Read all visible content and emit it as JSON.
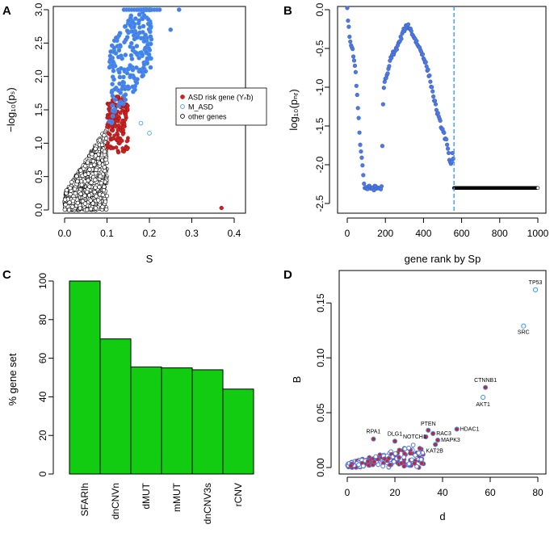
{
  "chart_data": [
    {
      "panel": "A",
      "type": "scatter",
      "xlabel": "S",
      "ylabel": "−log₁₀(pₛ)",
      "xlim": [
        0,
        0.4
      ],
      "ylim": [
        0,
        3.0
      ],
      "x_ticks": [
        "0.0",
        "0.1",
        "0.2",
        "0.3",
        "0.4"
      ],
      "y_ticks": [
        "0.0",
        "0.5",
        "1.0",
        "1.5",
        "2.0",
        "2.5",
        "3.0"
      ],
      "legend": {
        "position": "right",
        "entries": [
          {
            "label": "ASD risk gene (Yₙᵬ)",
            "color": "#cc2222",
            "marker": "filled"
          },
          {
            "label": "M_ASD",
            "color": "#3399ff",
            "marker": "open"
          },
          {
            "label": "other genes",
            "color": "#000000",
            "marker": "open"
          }
        ]
      },
      "series": [
        {
          "name": "other genes",
          "color": "#000000",
          "x_range": [
            0,
            0.1
          ],
          "y_range": [
            0,
            1.25
          ]
        },
        {
          "name": "ASD risk gene",
          "color": "#cc2222",
          "x_range": [
            0.1,
            0.16
          ],
          "y_range": [
            0.8,
            1.7
          ]
        },
        {
          "name": "M_ASD",
          "color": "#3399ff",
          "x_range": [
            0.1,
            0.27
          ],
          "y_range": [
            1.2,
            3.0
          ]
        }
      ],
      "outlier": {
        "x": 0.37,
        "y": 0.03
      }
    },
    {
      "panel": "B",
      "type": "scatter",
      "xlabel": "gene rank by Sp",
      "ylabel": "log₁₀(pₙᵣ)",
      "xlim": [
        0,
        1000
      ],
      "ylim": [
        -2.5,
        0.0
      ],
      "x_ticks": [
        "0",
        "200",
        "400",
        "600",
        "800",
        "1000"
      ],
      "y_ticks": [
        "0.0",
        "-0.5",
        "-1.0",
        "-1.5",
        "-2.0",
        "-2.5"
      ],
      "vline": 560,
      "profile": [
        [
          0,
          0
        ],
        [
          5,
          -0.15
        ],
        [
          15,
          -0.4
        ],
        [
          30,
          -0.55
        ],
        [
          45,
          -0.85
        ],
        [
          60,
          -1.4
        ],
        [
          70,
          -1.8
        ],
        [
          80,
          -2.0
        ],
        [
          90,
          -2.3
        ],
        [
          180,
          -2.3
        ],
        [
          185,
          -1.6
        ],
        [
          190,
          -1.0
        ],
        [
          195,
          -0.95
        ],
        [
          210,
          -0.85
        ],
        [
          230,
          -0.6
        ],
        [
          260,
          -0.5
        ],
        [
          300,
          -0.25
        ],
        [
          320,
          -0.2
        ],
        [
          340,
          -0.3
        ],
        [
          360,
          -0.4
        ],
        [
          380,
          -0.5
        ],
        [
          400,
          -0.6
        ],
        [
          430,
          -0.85
        ],
        [
          460,
          -1.2
        ],
        [
          480,
          -1.4
        ],
        [
          500,
          -1.55
        ],
        [
          520,
          -1.7
        ],
        [
          530,
          -1.85
        ],
        [
          545,
          -2.0
        ],
        [
          555,
          -1.8
        ],
        [
          560,
          -2.3
        ],
        [
          1000,
          -2.3
        ]
      ]
    },
    {
      "panel": "C",
      "type": "bar",
      "ylabel": "% gene set",
      "ylim": [
        0,
        100
      ],
      "y_ticks": [
        "0",
        "20",
        "40",
        "60",
        "80",
        "100"
      ],
      "categories": [
        "SFARIh",
        "dnCNVn",
        "dMUT",
        "mMUT",
        "dnCNV3s",
        "rCNV"
      ],
      "values": [
        100,
        70,
        55.5,
        55,
        54,
        44
      ],
      "color": "#11cc11"
    },
    {
      "panel": "D",
      "type": "scatter",
      "xlabel": "d",
      "ylabel": "B",
      "xlim": [
        0,
        80
      ],
      "ylim": [
        0,
        0.17
      ],
      "x_ticks": [
        "0",
        "20",
        "40",
        "60",
        "80"
      ],
      "y_ticks": [
        "0.00",
        "0.05",
        "0.10",
        "0.15"
      ],
      "labeled_points": [
        {
          "label": "TP53",
          "x": 79,
          "y": 0.162,
          "fill": "none"
        },
        {
          "label": "SRC",
          "x": 74,
          "y": 0.129,
          "fill": "none"
        },
        {
          "label": "CTNNB1",
          "x": 58,
          "y": 0.073,
          "fill": "red"
        },
        {
          "label": "AKT1",
          "x": 57,
          "y": 0.064,
          "fill": "none"
        },
        {
          "label": "HDAC1",
          "x": 46,
          "y": 0.035,
          "fill": "red"
        },
        {
          "label": "PTEN",
          "x": 34,
          "y": 0.034,
          "fill": "red"
        },
        {
          "label": "RAC3",
          "x": 36,
          "y": 0.031,
          "fill": "red"
        },
        {
          "label": "NOTCH1",
          "x": 33,
          "y": 0.028,
          "fill": "red"
        },
        {
          "label": "MAPK3",
          "x": 38,
          "y": 0.025,
          "fill": "red"
        },
        {
          "label": "KAT2B",
          "x": 37,
          "y": 0.021,
          "fill": "red"
        },
        {
          "label": "RPA1",
          "x": 11,
          "y": 0.026,
          "fill": "red"
        },
        {
          "label": "DLG1",
          "x": 20,
          "y": 0.024,
          "fill": "red"
        }
      ]
    }
  ],
  "panel_letters": [
    "A",
    "B",
    "C",
    "D"
  ]
}
